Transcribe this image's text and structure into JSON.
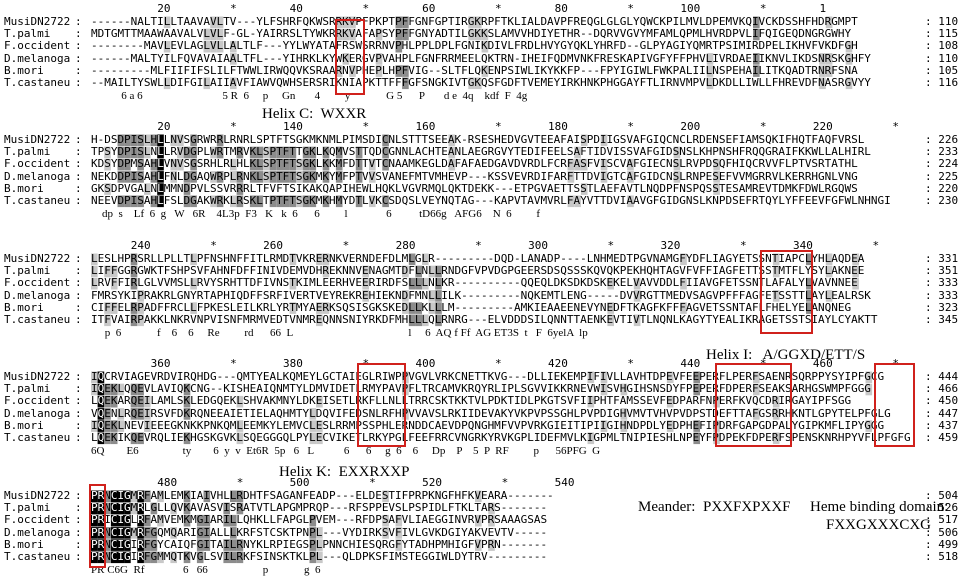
{
  "species": [
    "MusiDN2722",
    "T.palmi",
    "F.occident",
    "D.melanoga",
    "B.mori",
    "T.castaneu"
  ],
  "colors": {
    "identical": "#000000",
    "similar": "#8c8c8c",
    "weak": "#c8c8c8",
    "motif_box": "#d0211c"
  },
  "blocks": [
    {
      "ruler": "          20         *        40         *        60         *        80         *       100         *        1",
      "rows": [
        {
          "seq": "------NALTILLTAAVAVLTV---YLFSHRFQKWSRRKVPFPKPTPFFGNFGPTIRGKRPFTKLIALDAVPFREQGLGLGLYQWCKPILMVLDPEMVKQIVCKDSSHFHDRGMPT",
          "end": "110"
        },
        {
          "seq": "MDTGMTTMAAWAAVALVLVLF-GL-YAIRRSLTYWKRRKVAFAPSYPFFGNYADTILGKKSLAMVVHDIYETHR--DQRVVGVYMFAMLQPMLHVRDPVLIFQIGEQDNGRGWHY",
          "end": "115"
        },
        {
          "seq": "--------MAVLEVLAGLVLLALTLF---YYLWYATAFRSWSRRNVPHLPPLDPLFGNIKDIVLFRDLHVYGYQKLYHRFD--GLPYAGIYQMRTPSIMIRDPELIKHVFVKDFGH",
          "end": "108"
        },
        {
          "seq": "------MALTYILFQVAVAIAALTFL---YIHRKLKYWKERGVPVAHPLFGNFRRMEELQKTRN-IHEIFQDMVNKFRESKAPIVGFYFFPHVLIVRDAEIIKNVLIKDSNRSKGHFY",
          "end": "110"
        },
        {
          "seq": "---------MLFIIFIFSLILFTWWLIRWQQVKSRAARNVPHEPLHPFVIG--SLTFLQKENPSIWLIKYKKFP---FPYIGIWLFWKPALIILNSPEHAILITKQADTRNRFSNA",
          "end": "105"
        },
        {
          "seq": "--MAILTYSWLLDIFGILAIIAVFIAWVQWHSERSRIKNIAPKTTFFFGFSNGKIVTGKQSFGDFTVEMEYIRKHNKPHGGAYFTLIRNVMPVLDKDLLIWLLFHREVDFNASRGVYY",
          "end": "116"
        }
      ],
      "consensus": "           6 a 6                             5 R  6     p     Gn       4         y             G 5      P       d e  4q    kdf  F  4g"
    },
    {
      "ruler": "          20         *       140         *       160         *       180         *       200         *       220         *",
      "rows": [
        {
          "seq": "H-DSDPISLHLLNVSGRWRRLRNRLSPTFTSGKMKNMLPIMSDICNLSTTTSEEAK-RSESHEDVGVTEEAFAISPDIIGSVAFGIQCNCLRDENSEFIAMSQKIFHQTFAQFVRSL",
          "end": "226"
        },
        {
          "seq": "TPSYDPISLNLLRVDGPLWRTMRVKLSPTFTTGKLKQMVSTTQDCGNNLACHTEANLAEGRGVYTEDIFEELSAFTIDVISSVAFGIDSNSLKHPNSHFRQQGRAIFKKWLLALHIRL",
          "end": "233"
        },
        {
          "seq": "KDSYDPMSAHLVNVSGSRHLRLHLKLSPTFTSGKLKKMFDTTVTCNAAMKEGLDAFAFAEDGAVDVRDLFCRFASFVISCVAFGIECNSLRVPDSQFHIQCRVVFLPTVSRTATHL",
          "end": "224"
        },
        {
          "seq": "NEKDDPISAHLFNLDGAQWRPLRNKLSPTFTSGKMKYMFPTVVSVANEFMTVMHEVP---KSSVEVRDIFARFTTDVIGTCAFGIDCNSLRNPESEFVVMGRRVLKERRHGNLVNG",
          "end": "225"
        },
        {
          "seq": "GKSDPVGALNLMMNDPVLSSVRRRLTFVFTSIKAKQAPIHEWLHQKLVGVRMQLQKTDEKK---ETPGVAETTSSTLAEFAVTLNQDPFNSPQSSTESAMREVTDMKFDWLRGQWS",
          "end": "220"
        },
        {
          "seq": "NEEVDPISAHLFSLDGAKWRKLRSKLTPTFTSGKMKHMYDTLVKCSDQSLVEYNQTAG---KAPVTAVMVRLFAYVTTDVIAAVGFGIDGNSLKNPDSEFRTQYLYFFEEVFGFWLNHNGI",
          "end": "230"
        }
      ],
      "consensus": "    dp  s    Lf  6  g   W   6R    4L3p  F3   K   k  6      6         l              6          tD66g   AFG6    N  6         f"
    },
    {
      "ruler": "      240         *       260         *       280         *       300         *       320         *       340         *",
      "rows": [
        {
          "seq": "LESLHPRSRLLPLLTLPFNSHNFFITLRMDTVKRERNKVERNDEFDLMLGLR---------DQD-LANADP----LNHMEDTPGVNAMGFYDFLIAGYETSSNTIAPCLYHLAQDEA",
          "end": "331"
        },
        {
          "seq": "LIFFGGRGWKTFSHPSVFAHNFDFFINIVDEMVDHREKNNVENAGMTDFLNLLRNDGFVPVDGPGEERSDSQSSSKQVQKPEKHQHTAGVFVFFIAGFETTSSTMTFLYSYLAKNEE",
          "end": "351"
        },
        {
          "seq": "LRVFFIRLGLVVMSLLRVYSRHTTDFIVNSTKIMLEERHVEERIRDFSLLLNLKR----------QQEQLDKSDKDSKEKELVAVVDDLFIIAVGFETSSNTLAFALYLVAVNNEE",
          "end": "333"
        },
        {
          "seq": "FMRSYKIPRAKRLGNYRTAPHIQDFFSRFIVERTVEYREKREHIEKNDFMNLLILK---------NQKEMTLENG-----DVVRGTTMEDVSAGVPFFFAGFETSSTTLAYLEALRSK",
          "end": "333"
        },
        {
          "seq": "CIFFELRPADFFRCLLFPKESLEILKRLYRTMYAERKSQSISGKSKEDLLKLLLM---------AMKIEAAEENEVYNEDFTKAGFKFFFAGVETSSNTAFLFHELYELANQNEG",
          "end": "323"
        },
        {
          "seq": "ITFVAIRPAKKLNKRVNPVISNFMRMVEDTVNMREQNNSNIYRKDFMHLLLQLRNRG---ELVDDDSILQNNTTAENKEVTIVTLNQNLKAGYTYEALIKRAGETSSTSIAYLCYAKTT",
          "end": "345"
        }
      ],
      "consensus": "     p  6             f    6    6     Re         rd      66  L                                          l     6  AQ f Ff  AG ET3S  t   F  6yelA  lp"
    },
    {
      "ruler": "         360         *       380         *       400         *       420         *       440         *       460         *",
      "rows": [
        {
          "seq": "IQCRVIAGEVRDVIRQHDG---QMTYEALKQMEYLGCTAIEGLRIWPPVGVLVRKCNETTKVG---DLLIEKEMPIFIVLLAVHTDPEVFEEPERFLPERFSAENRSQRPPYSYIPFGCG",
          "end": "444"
        },
        {
          "seq": "IQEKLQQEVLAVIQKCNG--KISHEAIQNMTYLDMVIDETLRMYPAVPFLTRCAMVKRQYRLIPLSGVVIKKRNEVWISVHGIHSNSDYFPEPERFDPERFSEAKSARHGSWMPFGGG",
          "end": "466"
        },
        {
          "seq": "LQEKARQEILAMLSKLEDGQEKLSHVAKMNYLDKEISETLRKFLLNLLTRRCSKTKKTVLPDKTIDLPKGTSVFIIPHTFAMSSEVFEDPARFNPERFKVQCDRIRGAYIPFSGG",
          "end": "450"
        },
        {
          "seq": "VQENLRQEIRSVFDKRQNEEAIETIELAQHMTYLDQVIFEDSNLRFHPVVAVSLRKIIDEVAKYVKPVPSSGHLPVPDIGHVMVTVHVPVDPSTDEFTTAFGSRRHKNTLGPYTELPFGLG",
          "end": "447"
        },
        {
          "seq": "IQEKLNEVIEEEGKNKKPNKQMLEEMKYLEMVCLESLRRMPSSPHLERNDDCAEVDPQNGHMFVVPVRKGIEITIPIIGIHNDPDLYEDPHEFIPDRFGAPGDPALYGIPKMFLIPYGGG",
          "end": "437"
        },
        {
          "seq": "LQEKIKQEVRQLIEKHGSKGVKLSQEGGGQLPYLECVIKETLRKYPGLFEEFRRCVNGRKYRVKGPLIDEFMVLKIGPMLTNIPIESHLNPEYFPDPEKFDPERFSPENSKNRHPYVFLPFGFG",
          "end": "459"
        }
      ],
      "consensus": "6Q        E6                ty        6  y  v  Et6R  5p   6   L           6      6     g  6    6     Dp    P    5  P  RF         p      56PFG  G"
    },
    {
      "ruler": "          480         *       500         *       520         *       540",
      "rows": [
        {
          "seq": "PRNCIGMRFAMLEMKIAIVHLLRDHTFSAGANFEADP---ELDESTIFPRPKNGFHFKVEARA-------",
          "end": "504"
        },
        {
          "seq": "PRNCIGMRLGLLQVKAVASVISRATVTLAPGMPRQP---RFSPPEVSLPSPIDLFTKLTARS-------",
          "end": "526"
        },
        {
          "seq": "PRICIGLRFAMVEMKMGIARILLQHKLLFAPGLPVEM---RFDPSAFVLIAEGGINVRVPRSAAAGSAS",
          "end": "517"
        },
        {
          "seq": "PRNCIGMRFGQMQARIGIALLLKRFSTCSKTPNPL---VYDIRKSVFIVLGVKDGIYAKVEVTV-----",
          "end": "506"
        },
        {
          "seq": "PRNCIGIRFGYCAIQFGITAILRNYKLRPIEGSPLPNNCHIESQRGFYTADHPMHIGFVPRN-------",
          "end": "499"
        },
        {
          "seq": "PRNCIGIRFGMMQTKVGLSVILRKFSINSKTKLPL---QLDPKSFIMSTEGGIWLDYTRV---------",
          "end": "518"
        }
      ],
      "consensus": "PR C6G  Rf              6   66                    p             g  6"
    }
  ],
  "annotations": {
    "helix_c": "Helix C:  WXXR",
    "helix_i": "Helix I:   A/GGXD/ETT/S",
    "helix_k": "Helix K:  EXXRXXP",
    "meander": "Meander:  PXXFXPXXF",
    "heme_line1": "Heme binding domain:",
    "heme_line2": "FXXGXXXCXG"
  }
}
